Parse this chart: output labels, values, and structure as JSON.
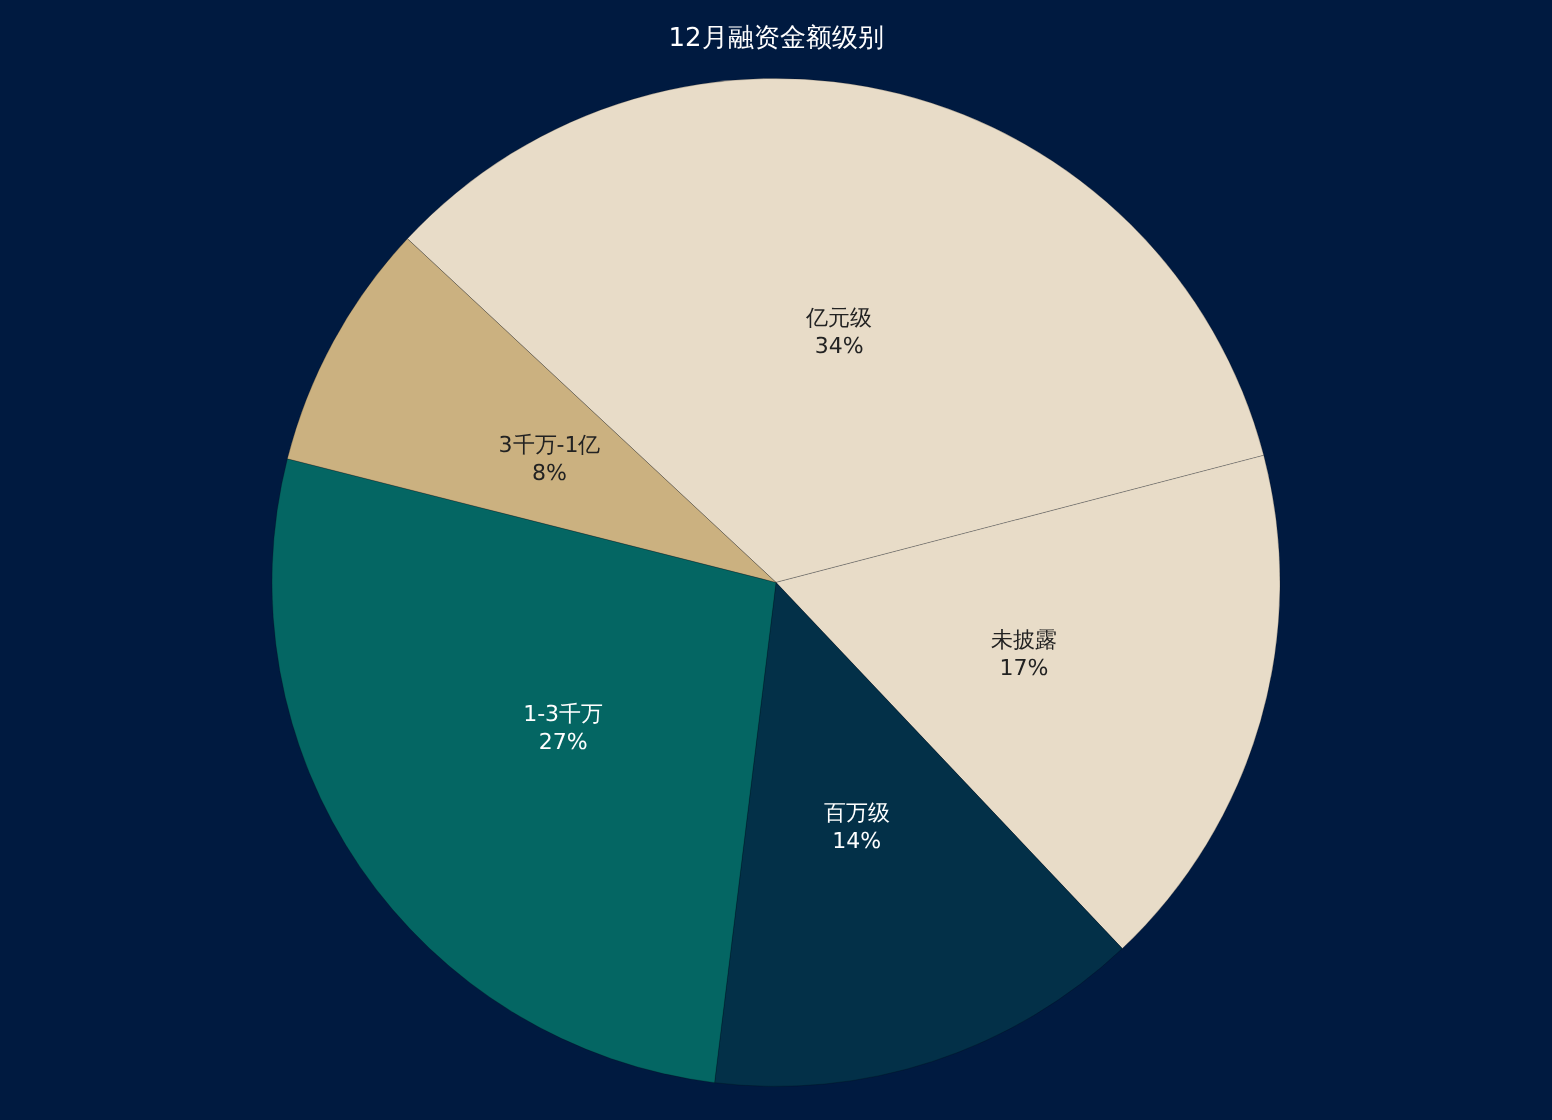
{
  "chart_data": {
    "type": "pie",
    "title": "12月融资金额级别",
    "categories": [
      "亿元级",
      "未披露",
      "百万级",
      "1-3千万",
      "3千万-1亿"
    ],
    "values": [
      34,
      17,
      14,
      27,
      8
    ],
    "value_labels": [
      "34%",
      "17%",
      "14%",
      "27%",
      "8%"
    ],
    "colors": [
      "#e8dcc8",
      "#e8dcc8",
      "#033048",
      "#046663",
      "#cbb180"
    ],
    "legend": false
  }
}
